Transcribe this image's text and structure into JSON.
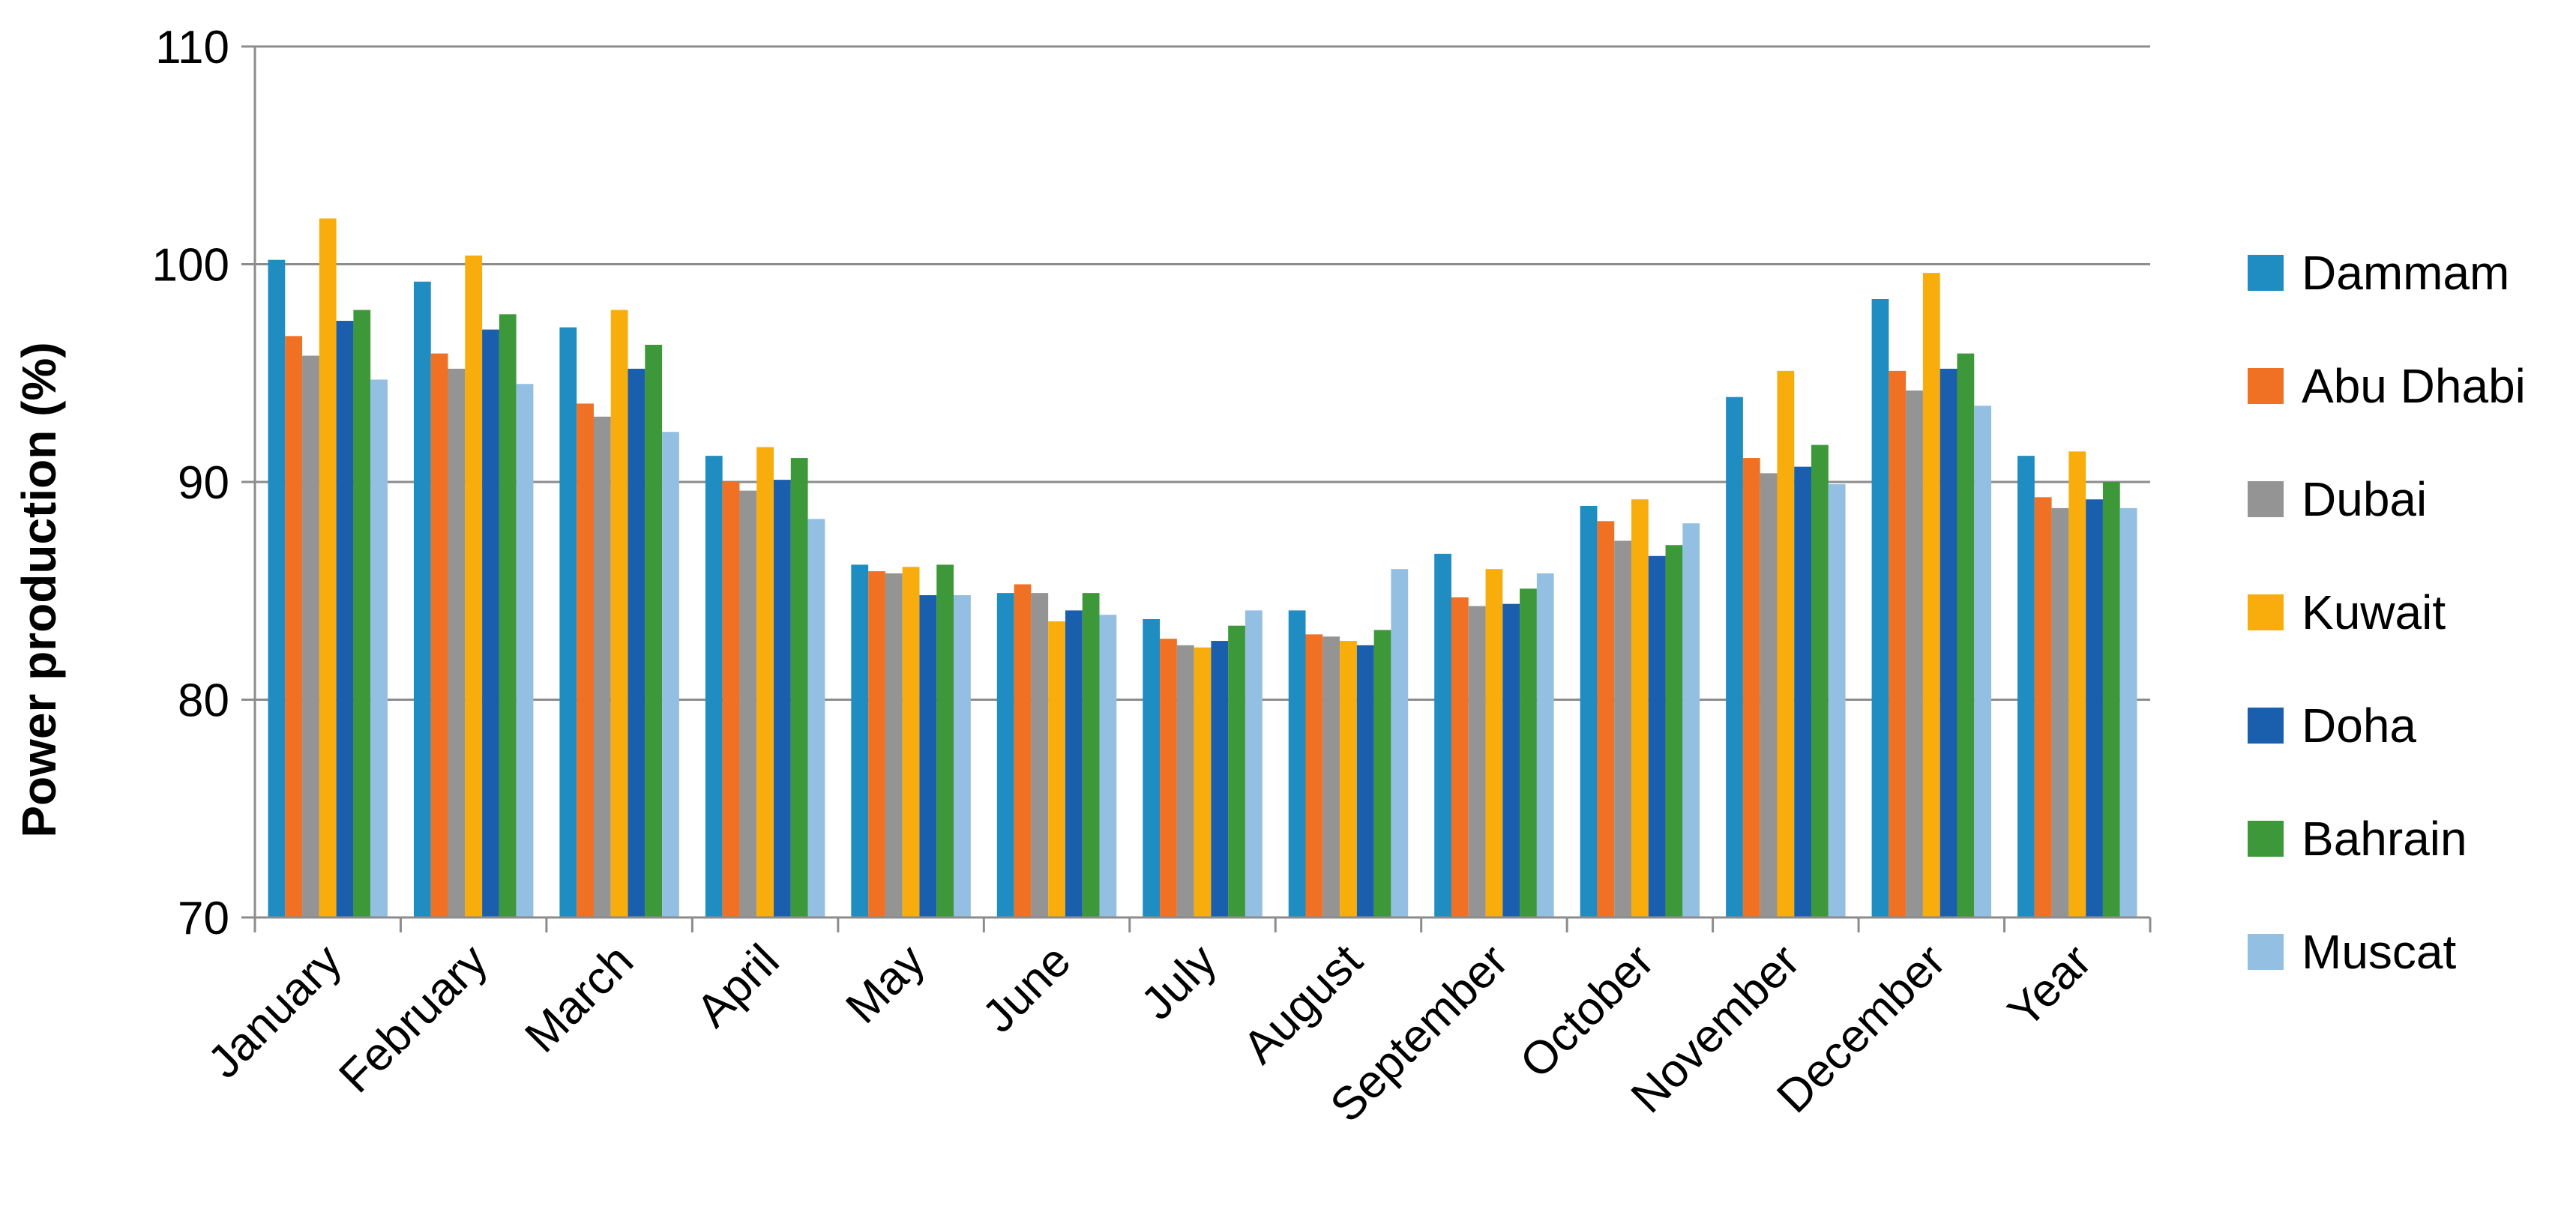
{
  "chart_data": {
    "type": "bar",
    "title": "",
    "xlabel": "",
    "ylabel": "Power production (%)",
    "ylim": [
      70,
      110
    ],
    "yticks": [
      "70",
      "80",
      "90",
      "100",
      "110"
    ],
    "grid": true,
    "legend_position": "right",
    "categories": [
      "January",
      "February",
      "March",
      "April",
      "May",
      "June",
      "July",
      "August",
      "September",
      "October",
      "November",
      "December",
      "Year"
    ],
    "series": [
      {
        "name": "Dammam",
        "color": "#1F8DC2",
        "values": [
          100.2,
          99.2,
          97.1,
          91.2,
          86.2,
          84.9,
          83.7,
          84.1,
          86.7,
          88.9,
          93.9,
          98.4,
          91.2
        ]
      },
      {
        "name": "Abu Dhabi",
        "color": "#F07124",
        "values": [
          96.7,
          95.9,
          93.6,
          90.0,
          85.9,
          85.3,
          82.8,
          83.0,
          84.7,
          88.2,
          91.1,
          95.1,
          89.3
        ]
      },
      {
        "name": "Dubai",
        "color": "#949494",
        "values": [
          95.8,
          95.2,
          93.0,
          89.6,
          85.8,
          84.9,
          82.5,
          82.9,
          84.3,
          87.3,
          90.4,
          94.2,
          88.8
        ]
      },
      {
        "name": "Kuwait",
        "color": "#F9AD0C",
        "values": [
          102.1,
          100.4,
          97.9,
          91.6,
          86.1,
          83.6,
          82.4,
          82.7,
          86.0,
          89.2,
          95.1,
          99.6,
          91.4
        ]
      },
      {
        "name": "Doha",
        "color": "#1A5FAD",
        "values": [
          97.4,
          97.0,
          95.2,
          90.1,
          84.8,
          84.1,
          82.7,
          82.5,
          84.4,
          86.6,
          90.7,
          95.2,
          89.2
        ]
      },
      {
        "name": "Bahrain",
        "color": "#3C9838",
        "values": [
          97.9,
          97.7,
          96.3,
          91.1,
          86.2,
          84.9,
          83.4,
          83.2,
          85.1,
          87.1,
          91.7,
          95.9,
          90.0
        ]
      },
      {
        "name": "Muscat",
        "color": "#93BFE3",
        "values": [
          94.7,
          94.5,
          92.3,
          88.3,
          84.8,
          83.9,
          84.1,
          86.0,
          85.8,
          88.1,
          89.9,
          93.5,
          88.8
        ]
      }
    ]
  }
}
